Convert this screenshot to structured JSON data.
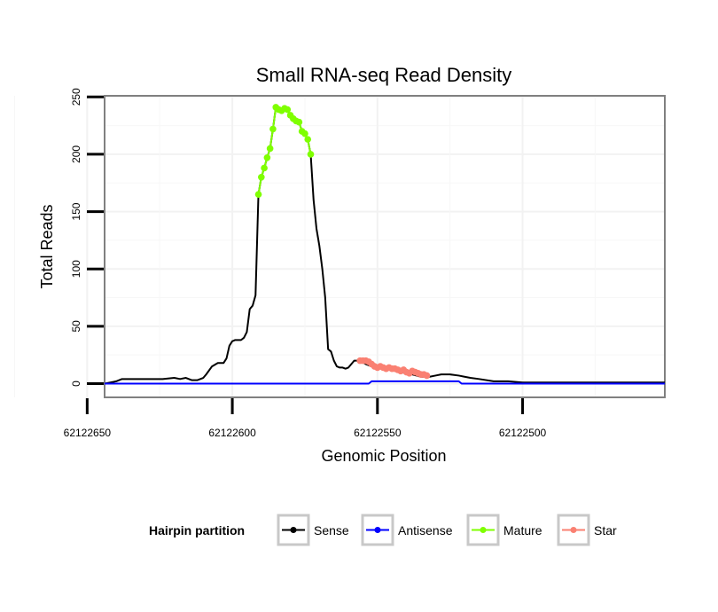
{
  "chart_data": {
    "type": "line",
    "title": "Small RNA-seq Read Density",
    "xlabel": "Genomic Position",
    "ylabel": "Total Reads",
    "xlim": [
      62122644,
      62122451
    ],
    "x_reversed": true,
    "ylim": [
      -12,
      251
    ],
    "xticks": [
      62122650,
      62122600,
      62122550,
      62122500
    ],
    "xtick_labels": [
      "62122650",
      "62122600",
      "62122550",
      "62122500"
    ],
    "yticks": [
      0,
      50,
      100,
      150,
      200,
      250
    ],
    "ytick_labels": [
      "0",
      "50",
      "100",
      "150",
      "200",
      "250"
    ],
    "grid": true,
    "legend": {
      "title": "Hairpin partition",
      "position": "bottom",
      "entries": [
        "Sense",
        "Antisense",
        "Mature",
        "Star"
      ]
    },
    "series": [
      {
        "name": "Sense",
        "color": "#000000",
        "style": "line",
        "x": [
          62122644,
          62122642,
          62122640,
          62122638,
          62122636,
          62122630,
          62122624,
          62122620,
          62122618,
          62122616,
          62122614,
          62122612,
          62122610,
          62122609,
          62122607,
          62122605,
          62122603,
          62122602,
          62122601,
          62122600,
          62122599,
          62122598,
          62122597,
          62122596,
          62122595,
          62122594,
          62122593,
          62122592,
          62122591,
          62122590,
          62122589,
          62122588,
          62122587,
          62122586,
          62122585,
          62122584,
          62122583,
          62122582,
          62122581,
          62122580,
          62122579,
          62122578,
          62122577,
          62122576,
          62122575,
          62122574,
          62122573,
          62122572,
          62122571,
          62122570,
          62122569,
          62122568,
          62122567,
          62122566,
          62122565,
          62122564,
          62122563,
          62122562,
          62122561,
          62122560,
          62122558,
          62122556,
          62122554,
          62122552,
          62122550,
          62122548,
          62122545,
          62122542,
          62122540,
          62122538,
          62122535,
          62122532,
          62122530,
          62122528,
          62122525,
          62122522,
          62122520,
          62122518,
          62122515,
          62122510,
          62122505,
          62122500,
          62122490,
          62122480,
          62122470,
          62122460,
          62122451
        ],
        "y": [
          0,
          1,
          2,
          4,
          4,
          4,
          4,
          5,
          4,
          5,
          3,
          3,
          5,
          8,
          15,
          18,
          18,
          22,
          33,
          37,
          38,
          38,
          38,
          40,
          45,
          65,
          68,
          77,
          165,
          180,
          188,
          197,
          205,
          222,
          241,
          239,
          238,
          240,
          239,
          234,
          231,
          229,
          228,
          220,
          218,
          213,
          200,
          160,
          135,
          120,
          100,
          75,
          30,
          28,
          20,
          15,
          14,
          14,
          13,
          14,
          20,
          20,
          17,
          15,
          14,
          13,
          12,
          10,
          9,
          8,
          6,
          6,
          7,
          8,
          8,
          7,
          6,
          5,
          4,
          2,
          2,
          1,
          1,
          1,
          1,
          1,
          1
        ]
      },
      {
        "name": "Antisense",
        "color": "#0000ff",
        "style": "line",
        "x": [
          62122644,
          62122610,
          62122580,
          62122553,
          62122552,
          62122530,
          62122522,
          62122521,
          62122490,
          62122451
        ],
        "y": [
          0,
          0,
          0,
          0,
          2,
          2,
          2,
          0,
          0,
          0
        ]
      },
      {
        "name": "Mature",
        "color": "#7fff00",
        "style": "line+points",
        "x": [
          62122591,
          62122590,
          62122589,
          62122588,
          62122587,
          62122586,
          62122585,
          62122584,
          62122583,
          62122582,
          62122581,
          62122580,
          62122579,
          62122578,
          62122577,
          62122576,
          62122575,
          62122574,
          62122573
        ],
        "y": [
          165,
          180,
          188,
          197,
          205,
          222,
          241,
          239,
          238,
          240,
          239,
          234,
          231,
          229,
          228,
          220,
          218,
          213,
          200
        ]
      },
      {
        "name": "Star",
        "color": "#fa8072",
        "style": "line+points",
        "x": [
          62122556,
          62122555,
          62122554,
          62122553,
          62122552,
          62122551,
          62122550,
          62122549,
          62122548,
          62122547,
          62122546,
          62122545,
          62122544,
          62122543,
          62122542,
          62122541,
          62122540,
          62122539,
          62122538,
          62122537,
          62122536,
          62122535,
          62122534,
          62122533
        ],
        "y": [
          20,
          20,
          20,
          19,
          17,
          15,
          14,
          15,
          14,
          13,
          14,
          13,
          13,
          12,
          11,
          12,
          10,
          9,
          11,
          10,
          9,
          8,
          8,
          7
        ]
      }
    ]
  }
}
